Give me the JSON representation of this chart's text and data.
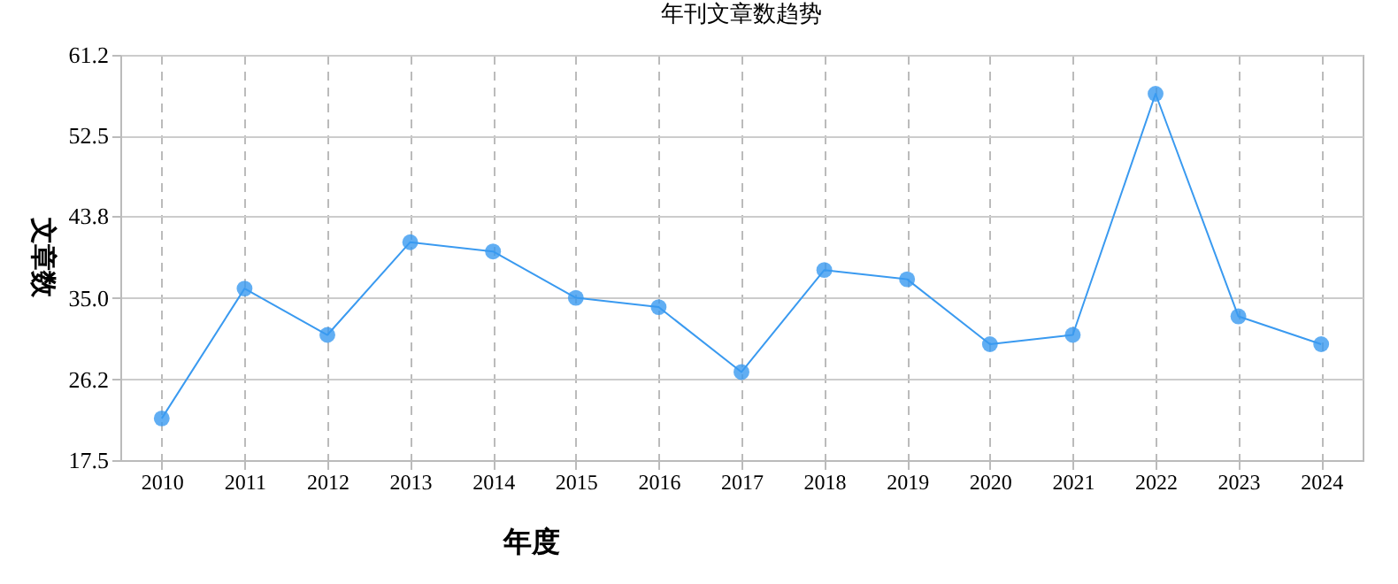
{
  "chart_data": {
    "type": "line",
    "title": "年刊文章数趋势",
    "xlabel": "年度",
    "ylabel": "文章数",
    "categories": [
      "2010",
      "2011",
      "2012",
      "2013",
      "2014",
      "2015",
      "2016",
      "2017",
      "2018",
      "2019",
      "2020",
      "2021",
      "2022",
      "2023",
      "2024"
    ],
    "series": [
      {
        "color": "#3a9af0",
        "values": [
          22,
          36,
          31,
          41,
          40,
          35,
          34,
          27,
          38,
          37,
          30,
          31,
          57,
          33,
          30
        ]
      }
    ],
    "ylim": [
      17.5,
      61.2
    ],
    "yticks": [
      17.5,
      26.2,
      {
        "value": 35,
        "label": "35.0"
      },
      43.8,
      52.5,
      61.2
    ],
    "grid": true,
    "marker": "circle",
    "line_style": "solid"
  }
}
